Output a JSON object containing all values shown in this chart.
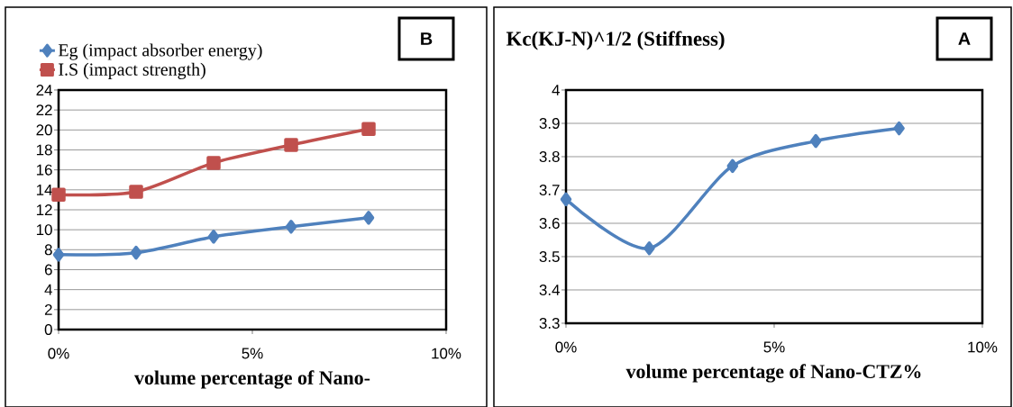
{
  "chart_data": [
    {
      "type": "line",
      "xlabel": "volume percentage of Nano-",
      "x": [
        0,
        2,
        4,
        6,
        8
      ],
      "xlim": [
        0,
        10
      ],
      "xticks": [
        {
          "value": 0,
          "label": "0%"
        },
        {
          "value": 5,
          "label": "5%"
        },
        {
          "value": 10,
          "label": "10%"
        }
      ],
      "ylim": [
        0,
        24
      ],
      "yticks": [
        0,
        2,
        4,
        6,
        8,
        10,
        12,
        14,
        16,
        18,
        20,
        22,
        24
      ],
      "grid": "y",
      "legend": "top left",
      "annotations": [
        "B"
      ],
      "series": [
        {
          "name": "Eg  (impact absorber energy)",
          "color": "#4f81bd",
          "marker": "diamond",
          "values": [
            7.5,
            7.7,
            9.3,
            10.3,
            11.2
          ]
        },
        {
          "name": "I.S   (impact strength)",
          "color": "#c0504d",
          "marker": "square",
          "values": [
            13.5,
            13.8,
            16.7,
            18.5,
            20.1
          ]
        }
      ]
    },
    {
      "type": "line",
      "title": "Kc(KJ-N)^1/2  (Stiffness)",
      "xlabel": "volume percentage of Nano-CTZ%",
      "x": [
        0,
        2,
        4,
        6,
        8
      ],
      "xlim": [
        0,
        10
      ],
      "xticks": [
        {
          "value": 0,
          "label": "0%"
        },
        {
          "value": 5,
          "label": "5%"
        },
        {
          "value": 10,
          "label": "10%"
        }
      ],
      "ylim": [
        3.3,
        4
      ],
      "yticks": [
        3.3,
        3.4,
        3.5,
        3.6,
        3.7,
        3.8,
        3.9,
        4
      ],
      "grid": "y",
      "annotations": [
        "A"
      ],
      "series": [
        {
          "color": "#4f81bd",
          "marker": "diamond",
          "values": [
            3.672,
            3.525,
            3.772,
            3.847,
            3.885
          ]
        }
      ]
    }
  ]
}
